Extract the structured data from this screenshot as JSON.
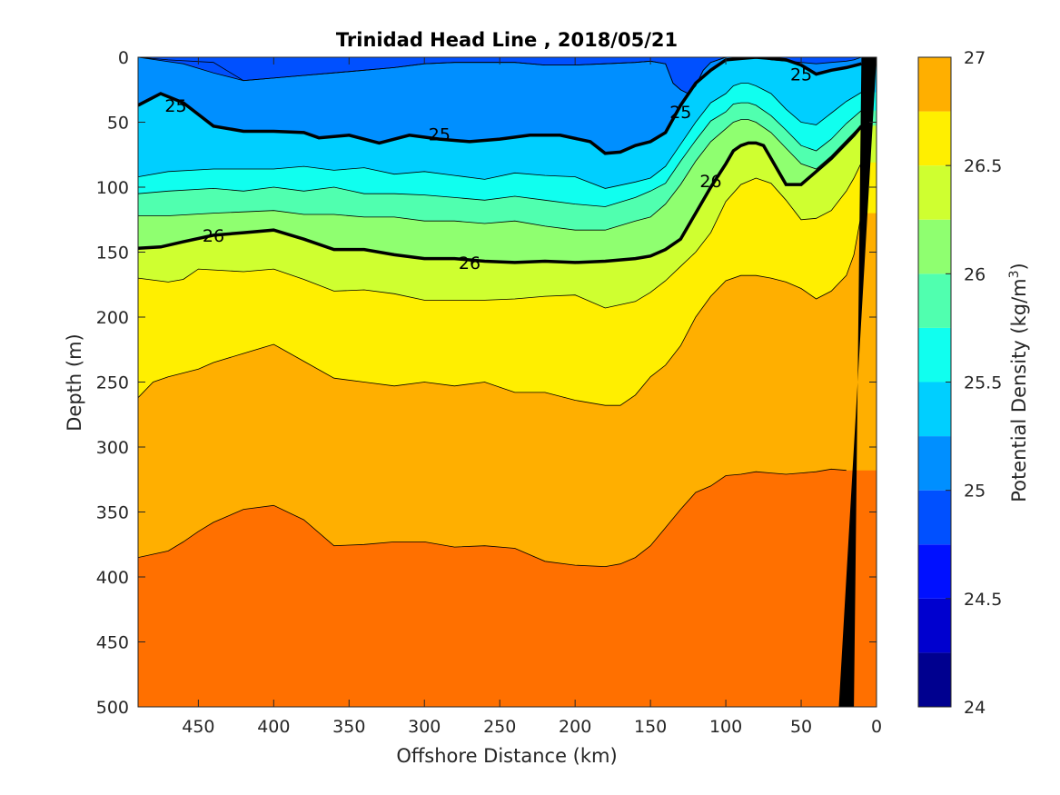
{
  "chart_data": {
    "type": "heatmap",
    "subtype": "filled-contour-section",
    "title": "Trinidad Head Line , 2018/05/21",
    "xlabel": "Offshore Distance (km)",
    "ylabel": "Depth (m)",
    "colorbar_label": "Potential Density (kg/m",
    "colorbar_label_sup": "3",
    "colorbar_label_end": ")",
    "xlim": [
      490,
      0
    ],
    "x_reversed": true,
    "ylim": [
      0,
      500
    ],
    "y_reversed": true,
    "x_ticks": [
      450,
      400,
      350,
      300,
      250,
      200,
      150,
      100,
      50,
      0
    ],
    "x_tick_labels": [
      "450",
      "400",
      "350",
      "300",
      "250",
      "200",
      "150",
      "100",
      "50",
      "0"
    ],
    "y_ticks": [
      0,
      50,
      100,
      150,
      200,
      250,
      300,
      350,
      400,
      450,
      500
    ],
    "y_tick_labels": [
      "0",
      "50",
      "100",
      "150",
      "200",
      "250",
      "300",
      "350",
      "400",
      "450",
      "500"
    ],
    "colorbar_ticks": [
      24,
      24.5,
      25,
      25.5,
      26,
      26.5,
      27
    ],
    "colorbar_tick_labels": [
      "24",
      "24.5",
      "25",
      "25.5",
      "26",
      "26.5",
      "27"
    ],
    "levels": [
      24,
      24.25,
      24.5,
      24.75,
      25,
      25.25,
      25.5,
      25.75,
      26,
      26.25,
      26.5,
      26.75,
      27
    ],
    "level_colors": [
      "#00008F",
      "#0000CF",
      "#0010FF",
      "#0050FF",
      "#008FFF",
      "#00CFFF",
      "#10FFEF",
      "#50FFAF",
      "#8FFF70",
      "#CFFF30",
      "#FFEF00",
      "#FFAF00",
      "#FF7000",
      "#FF3000",
      "#CF0000"
    ],
    "contour_lines": [
      {
        "level": 24.5,
        "labeled": false,
        "x": [
          490,
          470,
          440,
          420,
          400,
          380,
          360,
          340,
          320,
          300,
          280,
          260,
          240,
          220,
          200,
          180,
          160,
          150,
          140,
          135,
          130,
          125,
          120,
          115,
          110,
          100
        ],
        "depth": [
          0,
          2,
          4,
          18,
          16,
          14,
          12,
          10,
          8,
          5,
          4,
          4,
          4,
          6,
          6,
          5,
          4,
          3,
          5,
          20,
          25,
          28,
          22,
          10,
          4,
          0
        ]
      },
      {
        "level": 24.75,
        "labeled": false,
        "x": [
          490,
          460,
          440,
          420,
          400,
          380,
          360,
          340,
          320,
          300,
          280,
          260,
          240,
          220,
          200,
          180,
          160,
          150,
          140,
          135,
          130,
          125,
          120,
          115,
          110,
          100,
          95,
          90,
          85,
          80,
          70,
          60,
          50,
          40,
          30,
          20,
          15,
          10
        ],
        "depth": [
          0,
          5,
          12,
          18,
          16,
          14,
          12,
          10,
          8,
          5,
          4,
          4,
          4,
          6,
          6,
          5,
          4,
          3,
          5,
          20,
          25,
          28,
          22,
          10,
          4,
          0,
          0,
          0,
          0,
          0,
          2,
          3,
          4,
          5,
          4,
          3,
          2,
          0
        ]
      },
      {
        "level": 25,
        "labeled": true,
        "x": [
          490,
          475,
          460,
          440,
          420,
          400,
          380,
          370,
          350,
          330,
          310,
          290,
          270,
          250,
          230,
          210,
          190,
          180,
          170,
          160,
          150,
          140,
          130,
          120,
          110,
          100,
          90,
          80,
          70,
          60,
          50,
          40,
          30,
          20,
          10
        ],
        "depth": [
          37,
          28,
          35,
          53,
          57,
          57,
          58,
          62,
          60,
          66,
          60,
          63,
          65,
          63,
          60,
          60,
          65,
          74,
          73,
          68,
          65,
          58,
          37,
          20,
          10,
          2,
          1,
          0,
          1,
          2,
          6,
          13,
          10,
          8,
          5
        ],
        "labels": [
          {
            "x": 465,
            "depth": 37
          },
          {
            "x": 290,
            "depth": 59
          },
          {
            "x": 130,
            "depth": 42
          },
          {
            "x": 50,
            "depth": 13
          }
        ]
      },
      {
        "level": 25.25,
        "labeled": false,
        "x": [
          490,
          470,
          440,
          420,
          400,
          380,
          360,
          340,
          320,
          300,
          280,
          260,
          240,
          220,
          200,
          180,
          160,
          150,
          140,
          130,
          120,
          110,
          100,
          95,
          90,
          85,
          80,
          70,
          60,
          50,
          40,
          30,
          20,
          10
        ],
        "depth": [
          92,
          88,
          86,
          86,
          86,
          84,
          87,
          85,
          90,
          88,
          91,
          94,
          89,
          91,
          92,
          101,
          96,
          93,
          84,
          67,
          50,
          35,
          28,
          22,
          20,
          20,
          22,
          28,
          40,
          50,
          52,
          43,
          34,
          27
        ]
      },
      {
        "level": 25.5,
        "labeled": false,
        "x": [
          490,
          470,
          440,
          420,
          400,
          380,
          360,
          340,
          320,
          300,
          280,
          260,
          240,
          220,
          200,
          180,
          160,
          150,
          140,
          130,
          120,
          110,
          100,
          95,
          90,
          85,
          80,
          70,
          60,
          50,
          40,
          30,
          20,
          10
        ],
        "depth": [
          105,
          103,
          101,
          103,
          100,
          103,
          100,
          105,
          105,
          106,
          108,
          110,
          107,
          110,
          113,
          115,
          108,
          103,
          97,
          80,
          64,
          49,
          42,
          36,
          35,
          35,
          37,
          45,
          56,
          68,
          72,
          63,
          51,
          41
        ]
      },
      {
        "level": 25.75,
        "labeled": false,
        "x": [
          490,
          470,
          440,
          420,
          400,
          380,
          360,
          340,
          320,
          300,
          280,
          260,
          240,
          220,
          200,
          180,
          160,
          150,
          140,
          130,
          120,
          110,
          100,
          95,
          90,
          85,
          80,
          70,
          60,
          50,
          40,
          30,
          20,
          10
        ],
        "depth": [
          122,
          122,
          120,
          119,
          118,
          121,
          121,
          123,
          123,
          126,
          126,
          128,
          126,
          130,
          133,
          133,
          126,
          123,
          113,
          98,
          80,
          65,
          55,
          50,
          48,
          48,
          50,
          58,
          70,
          82,
          86,
          76,
          64,
          52
        ]
      },
      {
        "level": 26,
        "labeled": true,
        "x": [
          490,
          475,
          460,
          440,
          420,
          400,
          380,
          360,
          340,
          320,
          300,
          280,
          260,
          240,
          220,
          200,
          180,
          160,
          150,
          140,
          130,
          120,
          110,
          100,
          95,
          90,
          85,
          80,
          75,
          70,
          60,
          50,
          40,
          30,
          20,
          15,
          10
        ],
        "depth": [
          147,
          146,
          142,
          137,
          135,
          133,
          140,
          148,
          148,
          152,
          155,
          155,
          157,
          158,
          157,
          158,
          157,
          155,
          153,
          148,
          140,
          120,
          100,
          82,
          72,
          68,
          66,
          66,
          68,
          78,
          98,
          98,
          88,
          78,
          66,
          60,
          53
        ],
        "labels": [
          {
            "x": 440,
            "depth": 137
          },
          {
            "x": 270,
            "depth": 158
          },
          {
            "x": 110,
            "depth": 95
          }
        ]
      },
      {
        "level": 26.25,
        "labeled": false,
        "x": [
          490,
          470,
          460,
          450,
          420,
          400,
          380,
          360,
          340,
          320,
          300,
          280,
          260,
          240,
          220,
          200,
          180,
          160,
          150,
          140,
          130,
          120,
          110,
          100,
          90,
          80,
          70,
          60,
          50,
          40,
          30,
          20,
          15,
          10
        ],
        "depth": [
          170,
          173,
          171,
          163,
          165,
          163,
          171,
          180,
          179,
          182,
          187,
          187,
          187,
          186,
          184,
          183,
          193,
          188,
          181,
          172,
          161,
          150,
          135,
          111,
          98,
          93,
          97,
          110,
          125,
          124,
          118,
          103,
          93,
          81
        ]
      },
      {
        "level": 26.5,
        "labeled": false,
        "x": [
          490,
          480,
          470,
          460,
          450,
          440,
          420,
          400,
          380,
          360,
          340,
          320,
          300,
          280,
          260,
          240,
          220,
          200,
          180,
          170,
          160,
          150,
          140,
          130,
          120,
          110,
          100,
          90,
          80,
          70,
          60,
          50,
          40,
          30,
          20,
          15,
          10
        ],
        "depth": [
          262,
          250,
          246,
          243,
          240,
          235,
          228,
          221,
          234,
          247,
          250,
          253,
          250,
          253,
          250,
          258,
          258,
          264,
          268,
          268,
          260,
          246,
          237,
          222,
          200,
          184,
          172,
          168,
          168,
          170,
          173,
          178,
          186,
          180,
          168,
          152,
          120
        ]
      },
      {
        "level": 26.75,
        "labeled": false,
        "x": [
          490,
          470,
          460,
          450,
          440,
          420,
          400,
          380,
          360,
          340,
          320,
          300,
          280,
          260,
          240,
          220,
          200,
          180,
          170,
          160,
          150,
          140,
          130,
          120,
          110,
          100,
          90,
          80,
          70,
          60,
          50,
          40,
          30,
          20
        ],
        "depth": [
          385,
          380,
          373,
          365,
          358,
          348,
          345,
          356,
          376,
          375,
          373,
          373,
          377,
          376,
          378,
          388,
          391,
          392,
          390,
          385,
          376,
          362,
          348,
          335,
          330,
          322,
          321,
          319,
          320,
          321,
          320,
          319,
          317,
          318
        ]
      }
    ],
    "bathymetry": {
      "color": "#000000",
      "x": [
        0,
        25,
        15,
        10
      ],
      "depth": [
        0,
        500,
        500,
        0
      ]
    }
  }
}
